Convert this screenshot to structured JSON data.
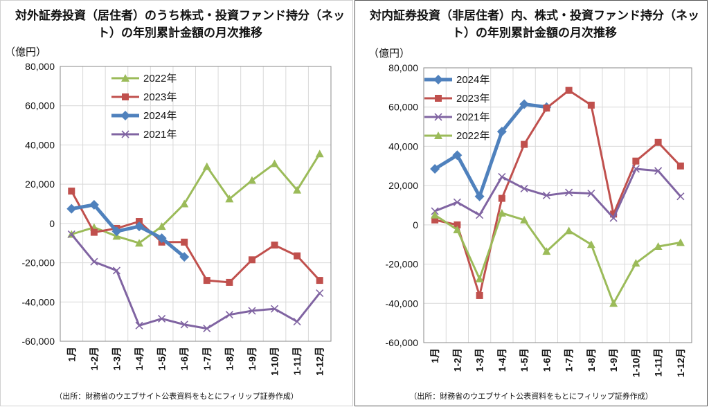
{
  "source": "（出所：財務省のウエブサイト公表資料をもとにフィリップ証券作成）",
  "chart_data": [
    {
      "type": "line",
      "title": "対外証券投資（居住者）のうち株式・投資ファンド持分（ネット）の年別累計金額の月次推移",
      "ylabel": "（億円）",
      "ylim": [
        -60000,
        80000
      ],
      "yticks": [
        80000,
        60000,
        40000,
        20000,
        0,
        -20000,
        -40000,
        -60000
      ],
      "ytick_labels": [
        "80,000",
        "60,000",
        "40,000",
        "20,000",
        "0",
        "-20,000",
        "-40,000",
        "-60,000"
      ],
      "categories": [
        "1月",
        "1-2月",
        "1-3月",
        "1-4月",
        "1-5月",
        "1-6月",
        "1-7月",
        "1-8月",
        "1-9月",
        "1-10月",
        "1-11月",
        "1-12月"
      ],
      "grid": true,
      "legend_position": "top-center",
      "series": [
        {
          "name": "2022年",
          "color": "#9bbb59",
          "marker": "triangle",
          "width": 3,
          "values": [
            -5500,
            -2000,
            -6500,
            -10000,
            -1500,
            10000,
            29000,
            12500,
            22000,
            30500,
            17000,
            35500
          ]
        },
        {
          "name": "2023年",
          "color": "#c0504d",
          "marker": "square",
          "width": 3,
          "values": [
            16500,
            -4500,
            -2500,
            1000,
            -9500,
            -9500,
            -29000,
            -30000,
            -18500,
            -11000,
            -16500,
            -29000
          ]
        },
        {
          "name": "2024年",
          "color": "#4f81bd",
          "marker": "diamond",
          "width": 5,
          "values": [
            7500,
            9500,
            -4000,
            -1500,
            -7500,
            -17000,
            null,
            null,
            null,
            null,
            null,
            null
          ]
        },
        {
          "name": "2021年",
          "color": "#8064a2",
          "marker": "x",
          "width": 3,
          "values": [
            -5500,
            -19500,
            -24000,
            -52000,
            -48500,
            -51500,
            -53500,
            -46500,
            -44500,
            -43500,
            -50000,
            -35500
          ]
        }
      ]
    },
    {
      "type": "line",
      "title": "対内証券投資（非居住者）内、株式・投資ファンド持分（ネット）の年別累計金額の月次推移",
      "ylabel": "（億円）",
      "ylim": [
        -60000,
        80000
      ],
      "yticks": [
        80000,
        60000,
        40000,
        20000,
        0,
        -20000,
        -40000,
        -60000
      ],
      "ytick_labels": [
        "80,000",
        "60,000",
        "40,000",
        "20,000",
        "0",
        "-20,000",
        "-40,000",
        "-60,000"
      ],
      "categories": [
        "1月",
        "1-2月",
        "1-3月",
        "1-4月",
        "1-5月",
        "1-6月",
        "1-7月",
        "1-8月",
        "1-9月",
        "1-10月",
        "1-11月",
        "1-12月"
      ],
      "grid": true,
      "legend_position": "top-left",
      "series": [
        {
          "name": "2024年",
          "color": "#4f81bd",
          "marker": "diamond",
          "width": 5,
          "values": [
            28500,
            35500,
            14500,
            47500,
            61500,
            60000,
            null,
            null,
            null,
            null,
            null,
            null
          ]
        },
        {
          "name": "2023年",
          "color": "#c0504d",
          "marker": "square",
          "width": 3,
          "values": [
            2500,
            0,
            -36000,
            13500,
            41000,
            59500,
            68500,
            61000,
            5500,
            32500,
            42000,
            30000
          ]
        },
        {
          "name": "2021年",
          "color": "#8064a2",
          "marker": "x",
          "width": 3,
          "values": [
            7000,
            11500,
            5000,
            24500,
            18500,
            15000,
            16500,
            16000,
            3500,
            28500,
            27500,
            14500
          ]
        },
        {
          "name": "2022年",
          "color": "#9bbb59",
          "marker": "triangle",
          "width": 3,
          "values": [
            5000,
            -2500,
            -27500,
            6000,
            2500,
            -13500,
            -3000,
            -10000,
            -40000,
            -19500,
            -11000,
            -9000
          ]
        }
      ]
    }
  ]
}
